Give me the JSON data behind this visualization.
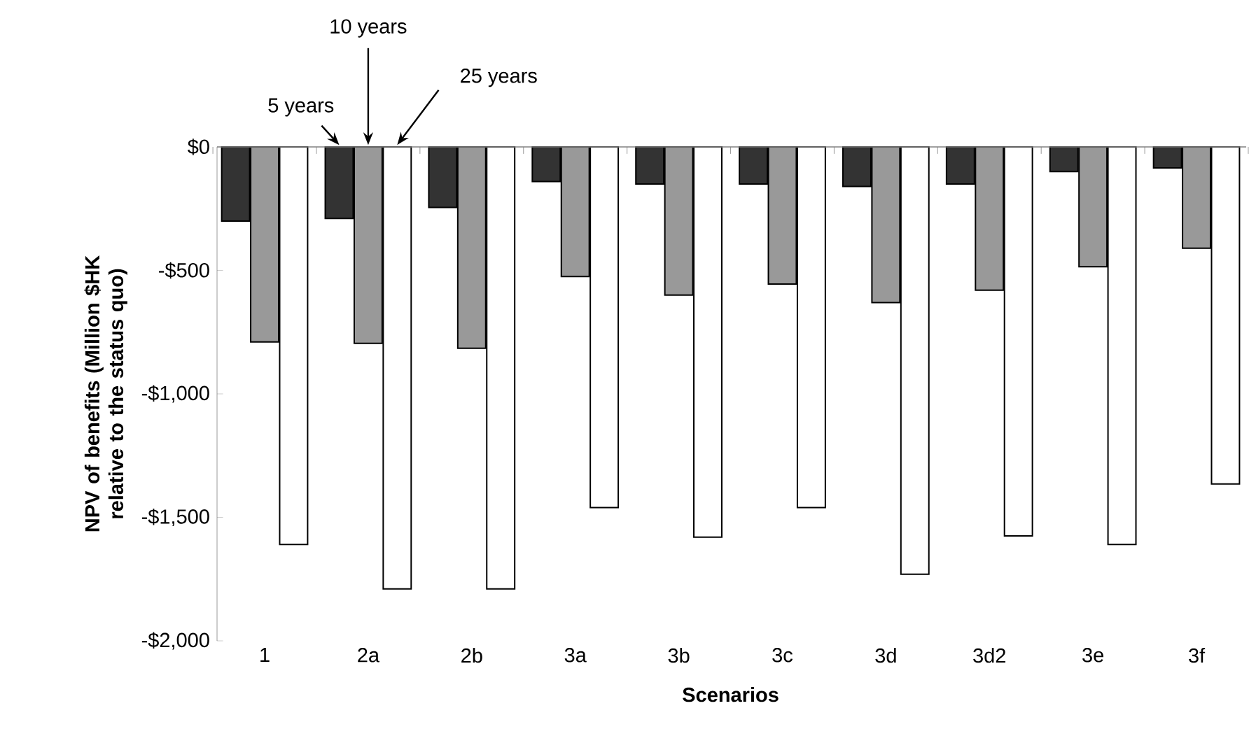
{
  "chart_data": {
    "type": "bar",
    "xlabel": "Scenarios",
    "ylabel": "NPV of benefits (Million $HK relative to the status quo)",
    "categories": [
      "1",
      "2a",
      "2b",
      "3a",
      "3b",
      "3c",
      "3d",
      "3d2",
      "3e",
      "3f"
    ],
    "series": [
      {
        "name": "5 years",
        "color": "#333333",
        "values": [
          -300,
          -290,
          -245,
          -140,
          -150,
          -150,
          -160,
          -150,
          -100,
          -85
        ]
      },
      {
        "name": "10 years",
        "color": "#999999",
        "values": [
          -790,
          -795,
          -815,
          -525,
          -600,
          -555,
          -630,
          -580,
          -485,
          -410
        ]
      },
      {
        "name": "25 years",
        "color": "#ffffff",
        "values": [
          -1610,
          -1790,
          -1790,
          -1460,
          -1580,
          -1460,
          -1730,
          -1575,
          -1610,
          -1365
        ]
      }
    ],
    "ylim": [
      -2000,
      0
    ],
    "yticks": [
      {
        "value": -2000,
        "label": "-$2,000"
      },
      {
        "value": -1500,
        "label": "-$1,500"
      },
      {
        "value": -1000,
        "label": "-$1,000"
      },
      {
        "value": -500,
        "label": "-$500"
      },
      {
        "value": 0,
        "label": "$0"
      }
    ],
    "legend": false
  }
}
